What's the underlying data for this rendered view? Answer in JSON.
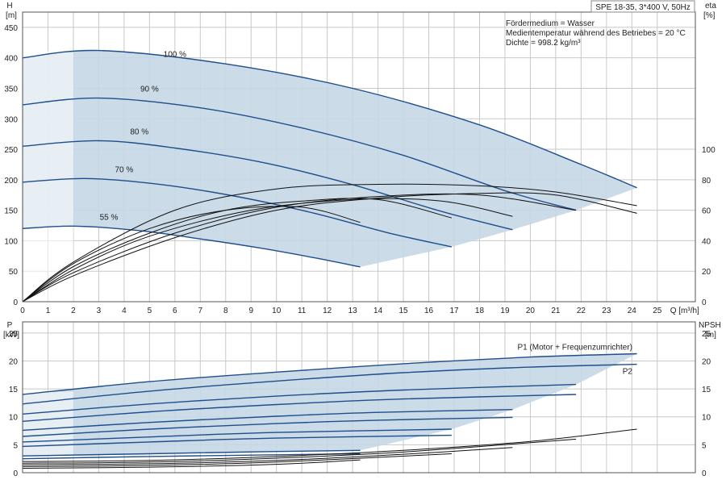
{
  "chart_data": [
    {
      "type": "line",
      "title_lines": [
        "SPE 18-35, 3*400 V, 50Hz"
      ],
      "annotations": [
        "Fördermedium = Wasser",
        "Medientemperatur während des Betriebes = 20 °C",
        "Dichte = 998.2 kg/m³"
      ],
      "left_axis": {
        "label_top": "H",
        "label_unit": "[m]",
        "ylim": [
          0,
          475
        ],
        "ticks": [
          0,
          50,
          100,
          150,
          200,
          250,
          300,
          350,
          400,
          450
        ]
      },
      "right_axis": {
        "label_top": "eta",
        "label_unit": "[%]",
        "ylim": [
          0,
          100
        ],
        "ticks": [
          0,
          20,
          40,
          60,
          80,
          100
        ]
      },
      "x_axis": {
        "label": "Q [m³/h]",
        "xlim": [
          0,
          26.5
        ],
        "ticks": [
          0,
          1,
          2,
          3,
          4,
          5,
          6,
          7,
          8,
          9,
          10,
          11,
          12,
          13,
          14,
          15,
          16,
          17,
          18,
          19,
          20,
          21,
          22,
          23,
          24,
          25
        ]
      },
      "speed_curves": [
        {
          "label": "100 %",
          "x": [
            0,
            3,
            8,
            13,
            18,
            22,
            24.2
          ],
          "y": [
            400,
            412,
            390,
            350,
            290,
            225,
            187
          ]
        },
        {
          "label": "90 %",
          "x": [
            0,
            3,
            7,
            11,
            15,
            19,
            21.8
          ],
          "y": [
            323,
            334,
            318,
            285,
            240,
            182,
            150
          ]
        },
        {
          "label": "80 %",
          "x": [
            0,
            3,
            6,
            9.5,
            13,
            16.5,
            19.3
          ],
          "y": [
            255,
            264,
            252,
            228,
            192,
            148,
            118
          ]
        },
        {
          "label": "70 %",
          "x": [
            0,
            2.5,
            5.5,
            8.5,
            11.5,
            14.5,
            16.9
          ],
          "y": [
            196,
            202,
            192,
            172,
            145,
            112,
            90
          ]
        },
        {
          "label": "55 %",
          "x": [
            0,
            2,
            4.5,
            7,
            9.5,
            11.5,
            13.3
          ],
          "y": [
            120,
            124,
            117,
            103,
            87,
            72,
            57
          ]
        }
      ],
      "efficiency_curves_right_axis": [
        {
          "x": [
            0,
            2,
            5,
            8,
            11,
            13.3
          ],
          "y": [
            0,
            25,
            48,
            60,
            62,
            52
          ]
        },
        {
          "x": [
            0,
            2,
            5,
            8,
            11,
            14,
            16.9
          ],
          "y": [
            0,
            23,
            45,
            60,
            66,
            67,
            55
          ]
        },
        {
          "x": [
            0,
            2,
            5,
            9,
            13,
            16.5,
            19.3
          ],
          "y": [
            0,
            21,
            43,
            60,
            67,
            66,
            56
          ]
        },
        {
          "x": [
            0,
            2,
            6,
            10,
            14,
            18,
            21.8
          ],
          "y": [
            0,
            19,
            45,
            62,
            69,
            70,
            60
          ]
        },
        {
          "x": [
            0,
            2,
            6,
            10,
            14,
            18,
            21,
            24.2
          ],
          "y": [
            0,
            17,
            42,
            60,
            68,
            71,
            70,
            58
          ]
        },
        {
          "x": [
            0,
            2,
            6,
            10,
            14,
            18,
            21,
            24.2
          ],
          "y": [
            0,
            26,
            60,
            74,
            77,
            76,
            72,
            63
          ]
        }
      ]
    },
    {
      "type": "line",
      "left_axis": {
        "label_top": "P",
        "label_unit": "[kW]",
        "ylim": [
          0,
          27
        ],
        "ticks": [
          0,
          5,
          10,
          15,
          20,
          25
        ]
      },
      "right_axis": {
        "label_top": "NPSH",
        "label_unit": "[m]",
        "ylim": [
          0,
          27
        ],
        "ticks": [
          0,
          5,
          10,
          15,
          20,
          25
        ]
      },
      "x_axis": {
        "xlim": [
          0,
          26.5
        ]
      },
      "series_labels": [
        "P1 (Motor + Frequenzumrichter)",
        "P2"
      ],
      "p1_curves": [
        {
          "x": [
            0,
            5,
            10,
            15,
            20,
            24.2
          ],
          "y": [
            14.0,
            16.3,
            18.0,
            19.5,
            20.7,
            21.3
          ]
        },
        {
          "x": [
            0,
            5,
            10,
            15,
            21.8
          ],
          "y": [
            10.5,
            12.3,
            13.7,
            14.8,
            15.8
          ]
        },
        {
          "x": [
            0,
            5,
            10,
            14,
            19.3
          ],
          "y": [
            7.6,
            9.0,
            10.1,
            10.8,
            11.3
          ]
        },
        {
          "x": [
            0,
            5,
            10,
            16.9
          ],
          "y": [
            5.5,
            6.4,
            7.2,
            7.8
          ]
        },
        {
          "x": [
            0,
            5,
            10,
            13.3
          ],
          "y": [
            3.0,
            3.4,
            3.8,
            4.0
          ]
        }
      ],
      "p2_curves": [
        {
          "x": [
            0,
            5,
            10,
            15,
            20,
            24.2
          ],
          "y": [
            12.3,
            14.6,
            16.4,
            17.9,
            18.9,
            19.4
          ]
        },
        {
          "x": [
            0,
            5,
            10,
            15,
            21.8
          ],
          "y": [
            9.2,
            10.9,
            12.2,
            13.2,
            14.0
          ]
        },
        {
          "x": [
            0,
            5,
            10,
            14,
            19.3
          ],
          "y": [
            6.5,
            7.8,
            8.8,
            9.4,
            9.9
          ]
        },
        {
          "x": [
            0,
            5,
            10,
            16.9
          ],
          "y": [
            4.7,
            5.5,
            6.2,
            6.7
          ]
        },
        {
          "x": [
            0,
            5,
            10,
            13.3
          ],
          "y": [
            2.5,
            2.9,
            3.2,
            3.4
          ]
        }
      ],
      "npsh_curves": [
        {
          "x": [
            0,
            5,
            10,
            15,
            20,
            24.2
          ],
          "y": [
            2.0,
            2.2,
            2.9,
            4.0,
            5.6,
            7.8
          ]
        },
        {
          "x": [
            0,
            5,
            10,
            15,
            21.8
          ],
          "y": [
            1.7,
            1.9,
            2.6,
            3.7,
            6.0
          ]
        },
        {
          "x": [
            0,
            5,
            10,
            15,
            19.3
          ],
          "y": [
            1.4,
            1.6,
            2.2,
            3.3,
            4.5
          ]
        },
        {
          "x": [
            0,
            5,
            10,
            16.9
          ],
          "y": [
            1.1,
            1.3,
            1.9,
            3.4
          ]
        },
        {
          "x": [
            0,
            5,
            10,
            13.3
          ],
          "y": [
            0.8,
            1.0,
            1.5,
            2.3
          ]
        }
      ]
    }
  ],
  "colors": {
    "envelope": "#c5d7e6",
    "envelope_light": "#e6f1fb",
    "speed_line": "#1f4e8c",
    "eff_line": "#111111",
    "grid": "#c8c8c8"
  }
}
